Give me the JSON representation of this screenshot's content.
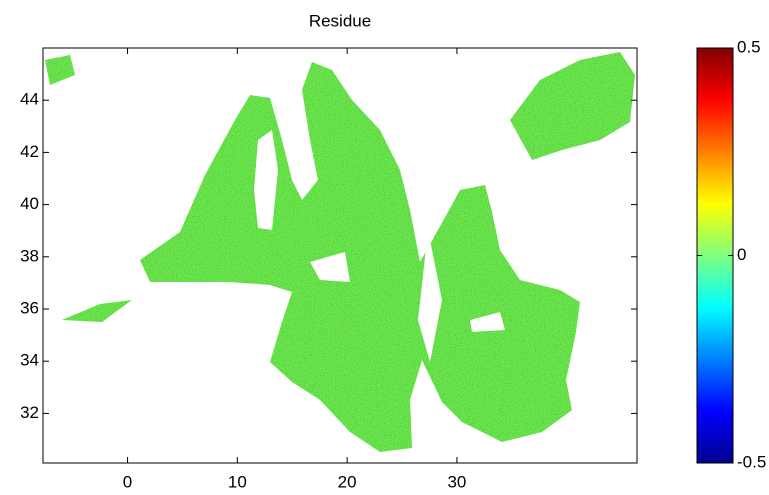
{
  "chart_data": {
    "type": "image",
    "title": "Residue",
    "xlim": [
      -7.7,
      46.4
    ],
    "xticks": [
      0,
      10,
      20,
      30
    ],
    "ylim": [
      30.1,
      46.0
    ],
    "yticks": [
      32,
      34,
      36,
      38,
      40,
      42,
      44
    ],
    "colorbar": {
      "clim": [
        -0.5,
        0.5
      ],
      "ticks": [
        -0.5,
        0,
        0.5
      ],
      "colormap": "jet"
    }
  }
}
